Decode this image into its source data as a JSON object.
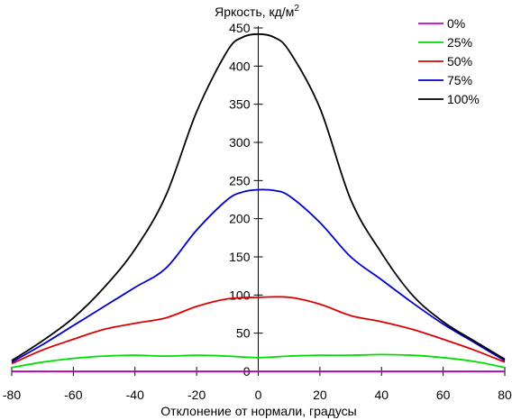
{
  "chart_data": {
    "type": "line",
    "ylabel": "Яркость, кд/м",
    "ylabel_sup": "2",
    "xlabel": "Отклонение от нормали, градусы",
    "xlim": [
      -80,
      80
    ],
    "ylim": [
      0,
      450
    ],
    "x_ticks": [
      -80,
      -60,
      -40,
      -20,
      0,
      20,
      40,
      60,
      80
    ],
    "x_tick_labels": [
      "-80",
      "-60",
      "-40",
      "-20",
      "0",
      "20",
      "40",
      "60",
      "80"
    ],
    "y_ticks": [
      0,
      50,
      100,
      150,
      200,
      250,
      300,
      350,
      400,
      450
    ],
    "y_tick_labels": [
      "0",
      "50",
      "100",
      "150",
      "200",
      "250",
      "300",
      "350",
      "400",
      "450"
    ],
    "grid": false,
    "legend_position": "top-right",
    "series": [
      {
        "name": "0%",
        "color": "#cc00cc",
        "x": [
          -80,
          80
        ],
        "y": [
          0,
          0
        ]
      },
      {
        "name": "25%",
        "color": "#00dd00",
        "x": [
          -80,
          -70,
          -60,
          -50,
          -40,
          -30,
          -20,
          -10,
          0,
          10,
          20,
          30,
          40,
          50,
          60,
          70,
          80
        ],
        "y": [
          5,
          12,
          17,
          20,
          21,
          20,
          21,
          20,
          18,
          20,
          21,
          21,
          22,
          21,
          18,
          13,
          5
        ]
      },
      {
        "name": "50%",
        "color": "#dd0000",
        "x": [
          -80,
          -70,
          -60,
          -50,
          -40,
          -30,
          -20,
          -10,
          0,
          10,
          20,
          30,
          40,
          50,
          60,
          70,
          80
        ],
        "y": [
          10,
          28,
          42,
          55,
          63,
          70,
          85,
          95,
          97,
          97,
          88,
          73,
          65,
          55,
          42,
          28,
          12
        ]
      },
      {
        "name": "75%",
        "color": "#0000cc",
        "x": [
          -80,
          -70,
          -60,
          -50,
          -40,
          -30,
          -20,
          -10,
          -5,
          0,
          5,
          10,
          20,
          30,
          40,
          50,
          60,
          70,
          80
        ],
        "y": [
          12,
          35,
          60,
          85,
          110,
          135,
          185,
          225,
          235,
          238,
          237,
          230,
          195,
          150,
          120,
          90,
          62,
          38,
          14
        ]
      },
      {
        "name": "100%",
        "color": "#000000",
        "x": [
          -80,
          -70,
          -60,
          -50,
          -40,
          -30,
          -20,
          -10,
          -5,
          0,
          5,
          10,
          20,
          30,
          40,
          50,
          60,
          70,
          80
        ],
        "y": [
          14,
          40,
          70,
          110,
          160,
          230,
          340,
          420,
          438,
          442,
          438,
          420,
          345,
          225,
          155,
          100,
          65,
          40,
          16
        ]
      }
    ]
  }
}
